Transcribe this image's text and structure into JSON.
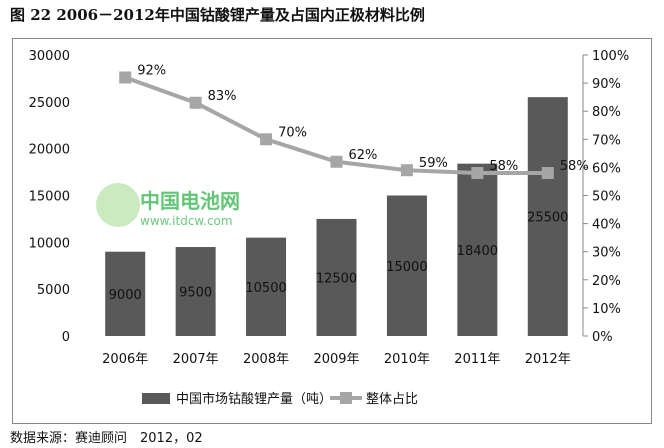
{
  "title": "图 22 2006－2012年中国钴酸锂产量及占国内正极材料比例",
  "source": "数据来源：赛迪顾问　2012，02",
  "watermark": {
    "name": "中国电池网",
    "url": "www.itdcw.com"
  },
  "chart_data": {
    "type": "bar+line",
    "categories": [
      "2006年",
      "2007年",
      "2008年",
      "2009年",
      "2010年",
      "2011年",
      "2012年"
    ],
    "series": [
      {
        "name": "中国市场钴酸锂产量（吨）",
        "type": "bar",
        "axis": "left",
        "color": "#595959",
        "values": [
          9000,
          9500,
          10500,
          12500,
          15000,
          18400,
          25500
        ],
        "labels": [
          "9000",
          "9500",
          "10500",
          "12500",
          "15000",
          "18400",
          "25500"
        ]
      },
      {
        "name": "整体占比",
        "type": "line",
        "axis": "right",
        "color": "#a6a6a6",
        "values": [
          92,
          83,
          70,
          62,
          59,
          58,
          58
        ],
        "labels": [
          "92%",
          "83%",
          "70%",
          "62%",
          "59%",
          "58%",
          "58%"
        ]
      }
    ],
    "left_axis": {
      "ylim": [
        0,
        30000
      ],
      "ticks": [
        "0",
        "5000",
        "10000",
        "15000",
        "20000",
        "25000",
        "30000"
      ]
    },
    "right_axis": {
      "ylim": [
        0,
        100
      ],
      "ticks": [
        "0%",
        "10%",
        "20%",
        "30%",
        "40%",
        "50%",
        "60%",
        "70%",
        "80%",
        "90%",
        "100%"
      ]
    },
    "legend_position": "bottom",
    "grid": false
  }
}
